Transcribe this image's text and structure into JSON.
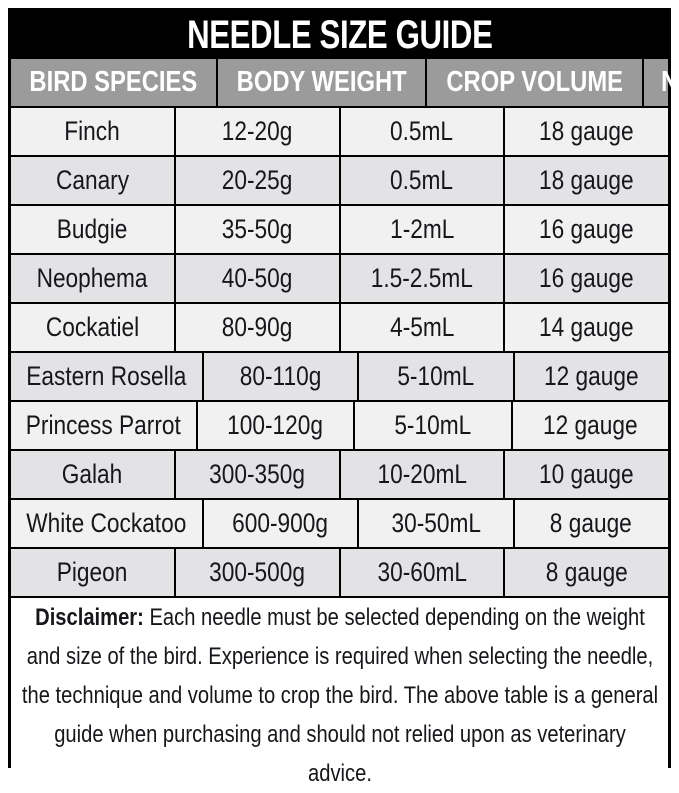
{
  "chart_data": {
    "type": "table",
    "title": "NEEDLE SIZE GUIDE",
    "columns": [
      "BIRD SPECIES",
      "BODY WEIGHT",
      "CROP VOLUME",
      "NEEDLE SIZE"
    ],
    "rows": [
      [
        "Finch",
        "12-20g",
        "0.5mL",
        "18 gauge"
      ],
      [
        "Canary",
        "20-25g",
        "0.5mL",
        "18 gauge"
      ],
      [
        "Budgie",
        "35-50g",
        "1-2mL",
        "16 gauge"
      ],
      [
        "Neophema",
        "40-50g",
        "1.5-2.5mL",
        "16 gauge"
      ],
      [
        "Cockatiel",
        "80-90g",
        "4-5mL",
        "14 gauge"
      ],
      [
        "Eastern Rosella",
        "80-110g",
        "5-10mL",
        "12 gauge"
      ],
      [
        "Princess Parrot",
        "100-120g",
        "5-10mL",
        "12 gauge"
      ],
      [
        "Galah",
        "300-350g",
        "10-20mL",
        "10 gauge"
      ],
      [
        "White Cockatoo",
        "600-900g",
        "30-50mL",
        "8 gauge"
      ],
      [
        "Pigeon",
        "300-500g",
        "30-60mL",
        "8 gauge"
      ]
    ],
    "layout": {
      "row_alternation": "light-dark",
      "header_position": "top"
    }
  },
  "disclaimer": {
    "label": "Disclaimer:",
    "text": "Each needle must be selected depending on the weight and size of the bird. Experience is required when selecting the needle, the technique and volume to crop the bird. The above table is a general guide when purchasing and should not relied upon as veterinary advice."
  },
  "colors": {
    "title_bg": "#000000",
    "title_text": "#ffffff",
    "header_bg": "#9b9b9b",
    "header_text": "#ffffff",
    "row_light": "#f1f1f1",
    "row_dark": "#e3e3e5",
    "border": "#000000",
    "body_text": "#17171b"
  }
}
